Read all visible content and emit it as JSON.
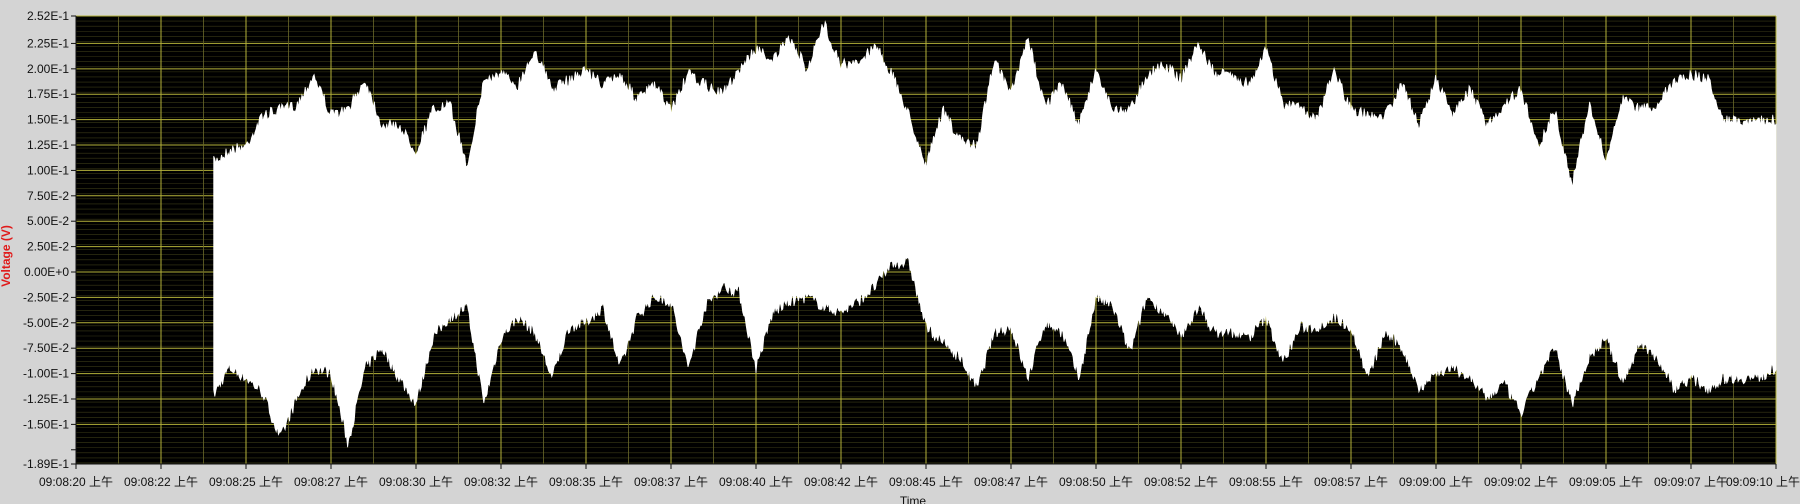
{
  "chart_data": {
    "type": "area",
    "title": "",
    "xlabel": "Time",
    "ylabel": "Voltage (V)",
    "colors": {
      "plot_background": "#000000",
      "signal": "#ffffff",
      "gridline": "#b5b23a",
      "minor_gridline": "#6b6a2a",
      "ylabel": "#e01b1b",
      "frame": "#d4d4d4"
    },
    "grid": true,
    "ylim": [
      -0.189,
      0.252
    ],
    "xlim": [
      "09:08:20",
      "09:09:10"
    ],
    "y_ticks": [
      "2.52E-1",
      "2.25E-1",
      "2.00E-1",
      "1.75E-1",
      "1.50E-1",
      "1.25E-1",
      "1.00E-1",
      "7.50E-2",
      "5.00E-2",
      "2.50E-2",
      "0.00E+0",
      "-2.50E-2",
      "-5.00E-2",
      "-7.50E-2",
      "-1.00E-1",
      "-1.25E-1",
      "-1.50E-1",
      "-1.89E-1"
    ],
    "y_tick_values": [
      0.252,
      0.225,
      0.2,
      0.175,
      0.15,
      0.125,
      0.1,
      0.075,
      0.05,
      0.025,
      0.0,
      -0.025,
      -0.05,
      -0.075,
      -0.1,
      -0.125,
      -0.15,
      -0.189
    ],
    "x_ticks": [
      "09:08:20 上午",
      "09:08:22 上午",
      "09:08:25 上午",
      "09:08:27 上午",
      "09:08:30 上午",
      "09:08:32 上午",
      "09:08:35 上午",
      "09:08:37 上午",
      "09:08:40 上午",
      "09:08:42 上午",
      "09:08:45 上午",
      "09:08:47 上午",
      "09:08:50 上午",
      "09:08:52 上午",
      "09:08:55 上午",
      "09:08:57 上午",
      "09:09:00 上午",
      "09:09:02 上午",
      "09:09:05 上午",
      "09:09:07 上午",
      "09:09:10 上午"
    ],
    "x_tick_seconds": [
      0,
      2.5,
      5,
      7.5,
      10,
      12.5,
      15,
      17.5,
      20,
      22.5,
      25,
      27.5,
      30,
      32.5,
      35,
      37.5,
      40,
      42.5,
      45,
      47.5,
      50
    ],
    "series": [
      {
        "signal_start_seconds": 4.05,
        "envelope_seconds": [
          4.05,
          4.5,
          5.0,
          5.5,
          6.0,
          6.5,
          7.0,
          7.5,
          8.0,
          8.5,
          9.0,
          9.5,
          10.0,
          10.5,
          11.0,
          11.5,
          12.0,
          12.5,
          13.0,
          13.5,
          14.0,
          14.5,
          15.0,
          15.5,
          16.0,
          16.5,
          17.0,
          17.5,
          18.0,
          18.5,
          19.0,
          19.5,
          20.0,
          20.5,
          21.0,
          21.5,
          22.0,
          22.5,
          23.0,
          23.5,
          24.0,
          24.5,
          25.0,
          25.5,
          26.0,
          26.5,
          27.0,
          27.5,
          28.0,
          28.5,
          29.0,
          29.5,
          30.0,
          30.5,
          31.0,
          31.5,
          32.0,
          32.5,
          33.0,
          33.5,
          34.0,
          34.5,
          35.0,
          35.5,
          36.0,
          36.5,
          37.0,
          37.5,
          38.0,
          38.5,
          39.0,
          39.5,
          40.0,
          40.5,
          41.0,
          41.5,
          42.0,
          42.5,
          43.0,
          43.5,
          44.0,
          44.5,
          45.0,
          45.5,
          46.0,
          46.5,
          47.0,
          47.5,
          48.0,
          48.5,
          49.0,
          49.5,
          50.0
        ],
        "upper": [
          0.114,
          0.125,
          0.13,
          0.16,
          0.165,
          0.17,
          0.2,
          0.16,
          0.165,
          0.195,
          0.15,
          0.15,
          0.125,
          0.165,
          0.17,
          0.11,
          0.195,
          0.2,
          0.19,
          0.225,
          0.185,
          0.195,
          0.205,
          0.19,
          0.2,
          0.175,
          0.19,
          0.165,
          0.2,
          0.19,
          0.18,
          0.205,
          0.225,
          0.215,
          0.235,
          0.205,
          0.25,
          0.21,
          0.21,
          0.23,
          0.2,
          0.16,
          0.11,
          0.165,
          0.135,
          0.13,
          0.215,
          0.18,
          0.235,
          0.17,
          0.19,
          0.15,
          0.205,
          0.165,
          0.165,
          0.2,
          0.21,
          0.195,
          0.23,
          0.2,
          0.2,
          0.19,
          0.225,
          0.17,
          0.17,
          0.155,
          0.205,
          0.165,
          0.16,
          0.16,
          0.19,
          0.15,
          0.195,
          0.16,
          0.185,
          0.15,
          0.17,
          0.185,
          0.13,
          0.165,
          0.09,
          0.17,
          0.115,
          0.175,
          0.165,
          0.17,
          0.195,
          0.2,
          0.195,
          0.155,
          0.155,
          0.155,
          0.155
        ],
        "lower": [
          -0.127,
          -0.1,
          -0.11,
          -0.125,
          -0.17,
          -0.13,
          -0.1,
          -0.105,
          -0.175,
          -0.1,
          -0.08,
          -0.11,
          -0.135,
          -0.07,
          -0.05,
          -0.04,
          -0.135,
          -0.07,
          -0.05,
          -0.065,
          -0.11,
          -0.06,
          -0.055,
          -0.04,
          -0.1,
          -0.05,
          -0.03,
          -0.035,
          -0.1,
          -0.04,
          -0.02,
          -0.025,
          -0.1,
          -0.045,
          -0.035,
          -0.03,
          -0.04,
          -0.045,
          -0.035,
          -0.02,
          0.003,
          0.003,
          -0.06,
          -0.075,
          -0.09,
          -0.12,
          -0.065,
          -0.06,
          -0.11,
          -0.055,
          -0.065,
          -0.11,
          -0.03,
          -0.04,
          -0.085,
          -0.03,
          -0.045,
          -0.07,
          -0.04,
          -0.065,
          -0.065,
          -0.07,
          -0.05,
          -0.095,
          -0.06,
          -0.06,
          -0.05,
          -0.06,
          -0.11,
          -0.065,
          -0.08,
          -0.12,
          -0.105,
          -0.1,
          -0.11,
          -0.13,
          -0.115,
          -0.145,
          -0.11,
          -0.08,
          -0.135,
          -0.09,
          -0.07,
          -0.115,
          -0.075,
          -0.09,
          -0.12,
          -0.11,
          -0.12,
          -0.11,
          -0.11,
          -0.11,
          -0.1
        ]
      }
    ]
  }
}
